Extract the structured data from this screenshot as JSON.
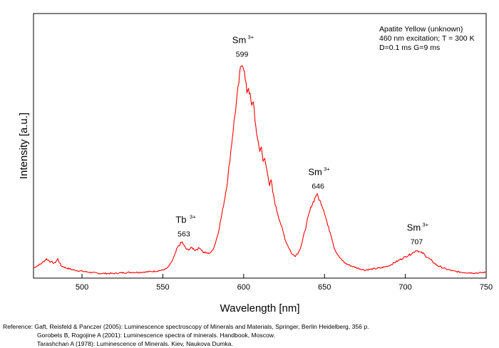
{
  "chart_data": {
    "type": "line",
    "xlabel": "Wavelength [nm]",
    "ylabel": "Intensity [a.u.]",
    "xlim": [
      470,
      750
    ],
    "ylim": [
      0,
      1.0
    ],
    "xticks": [
      500,
      550,
      600,
      650,
      700,
      750
    ],
    "grid": false,
    "legend_lines": [
      "Apatite Yellow (unknown)",
      "460 nm excitation; T = 300 K",
      "D=0.1 ms G=9 ms"
    ],
    "legend_placement": "top-right",
    "line_color": "#ff0000",
    "series": [
      {
        "x": [
          470,
          475,
          478,
          480,
          483,
          485,
          487,
          490,
          495,
          500,
          505,
          510,
          515,
          520,
          525,
          530,
          535,
          540,
          545,
          550,
          553,
          555,
          557,
          559,
          561,
          562,
          563,
          565,
          568,
          570,
          573,
          575,
          578,
          580,
          582,
          584,
          586,
          588,
          590,
          592,
          594,
          596,
          598,
          599,
          600,
          601,
          602,
          603,
          604,
          605,
          606,
          607,
          608,
          609,
          610,
          611,
          612,
          613,
          614,
          615,
          616,
          617,
          618,
          620,
          622,
          624,
          626,
          628,
          630,
          632,
          634,
          636,
          638,
          640,
          642,
          644,
          645,
          646,
          647,
          648,
          649,
          650,
          652,
          654,
          656,
          658,
          660,
          663,
          666,
          670,
          675,
          680,
          685,
          690,
          695,
          700,
          703,
          705,
          707,
          709,
          711,
          713,
          715,
          718,
          720,
          725,
          730,
          735,
          740,
          745,
          750
        ],
        "y": [
          0.03,
          0.05,
          0.07,
          0.06,
          0.05,
          0.07,
          0.04,
          0.03,
          0.02,
          0.015,
          0.01,
          0.005,
          0.005,
          0.005,
          0.008,
          0.01,
          0.01,
          0.012,
          0.015,
          0.02,
          0.03,
          0.05,
          0.08,
          0.12,
          0.14,
          0.145,
          0.13,
          0.11,
          0.12,
          0.11,
          0.12,
          0.1,
          0.095,
          0.1,
          0.13,
          0.18,
          0.25,
          0.33,
          0.42,
          0.55,
          0.68,
          0.8,
          0.92,
          0.95,
          0.93,
          0.87,
          0.82,
          0.84,
          0.8,
          0.75,
          0.78,
          0.7,
          0.62,
          0.6,
          0.55,
          0.58,
          0.5,
          0.52,
          0.48,
          0.45,
          0.4,
          0.42,
          0.37,
          0.3,
          0.25,
          0.2,
          0.15,
          0.12,
          0.09,
          0.085,
          0.1,
          0.14,
          0.2,
          0.26,
          0.31,
          0.34,
          0.36,
          0.35,
          0.33,
          0.32,
          0.3,
          0.28,
          0.22,
          0.18,
          0.12,
          0.09,
          0.07,
          0.05,
          0.04,
          0.03,
          0.02,
          0.025,
          0.03,
          0.04,
          0.06,
          0.08,
          0.09,
          0.1,
          0.11,
          0.1,
          0.095,
          0.08,
          0.07,
          0.05,
          0.04,
          0.025,
          0.015,
          0.01,
          0.008,
          0.007,
          0.01
        ]
      }
    ],
    "peaks": [
      {
        "ion": "Tb",
        "sup": "3+",
        "nm": "563",
        "x": 563,
        "y": 0.145
      },
      {
        "ion": "Sm",
        "sup": "3+",
        "nm": "599",
        "x": 599,
        "y": 0.95
      },
      {
        "ion": "Sm",
        "sup": "3+",
        "nm": "646",
        "x": 646,
        "y": 0.36
      },
      {
        "ion": "Sm",
        "sup": "3+",
        "nm": "707",
        "x": 707,
        "y": 0.11
      }
    ]
  },
  "references": [
    "Reference: Gaft, Reisfeld & Panczer (2005): Luminescence spectroscopy of Minerals and Materials, Springer, Berlin Heidelberg, 356 p.",
    "Gorobets B, Rogojine A (2001): Luminescence spectra of minerals. Handbook, Moscow.",
    "Tarashchan A (1978): Luminescence of Minerals. Kiev, Naukova Dumka."
  ]
}
